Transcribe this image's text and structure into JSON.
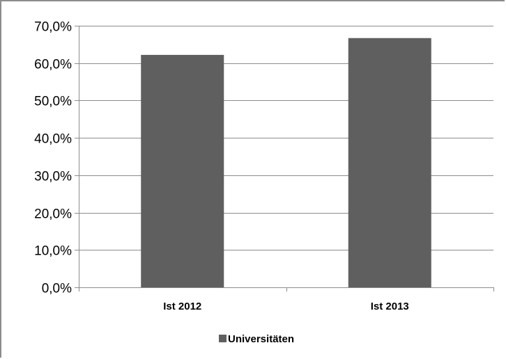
{
  "chart_data": {
    "type": "bar",
    "title": "",
    "xlabel": "",
    "ylabel": "",
    "categories": [
      "Ist 2012",
      "Ist 2013"
    ],
    "series": [
      {
        "name": "Universitäten",
        "values": [
          62.2,
          66.7
        ],
        "color": "#5f5f5f"
      }
    ],
    "ylim": [
      0,
      70
    ],
    "yticks": [
      0,
      10,
      20,
      30,
      40,
      50,
      60,
      70
    ],
    "ytick_labels": [
      "0,0%",
      "10,0%",
      "20,0%",
      "30,0%",
      "40,0%",
      "50,0%",
      "60,0%",
      "70,0%"
    ],
    "grid": true,
    "legend_position": "bottom"
  }
}
